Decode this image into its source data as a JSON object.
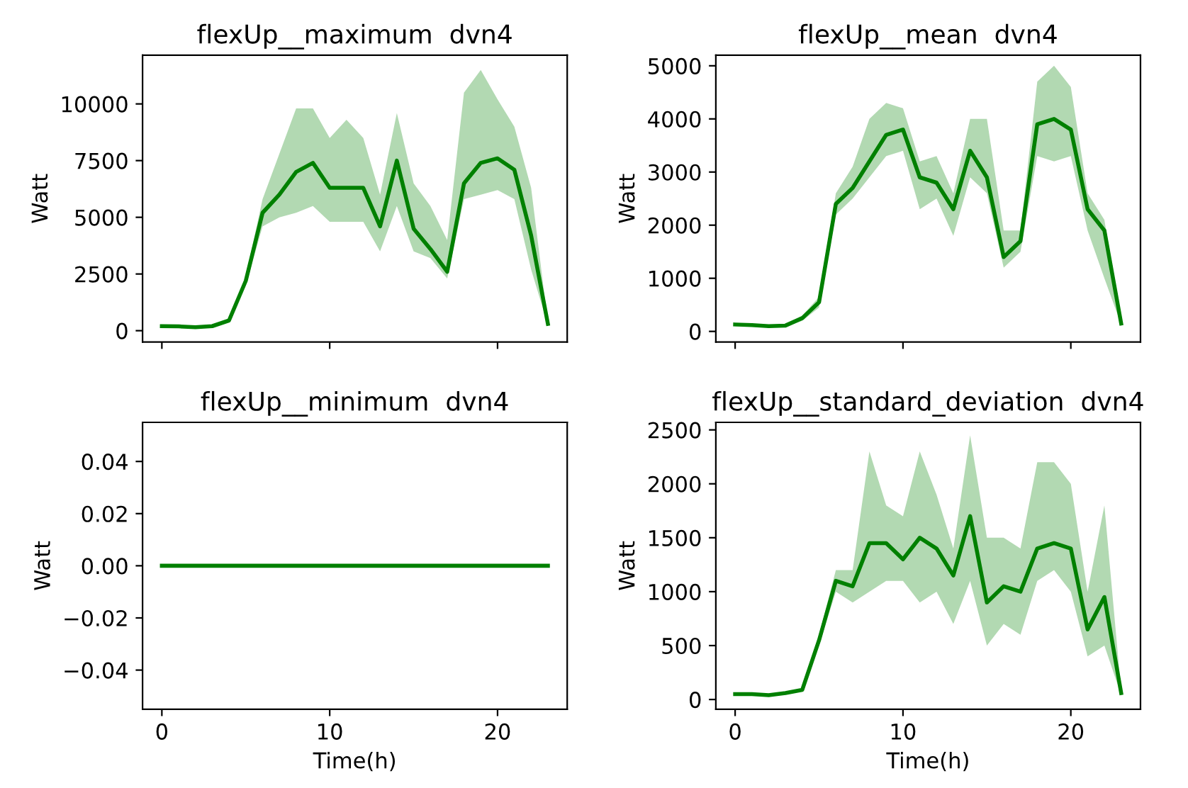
{
  "chart_data": [
    {
      "type": "line",
      "title": "flexUp__maximum  dvn4",
      "ylabel": "Watt",
      "x": [
        0,
        1,
        2,
        3,
        4,
        5,
        6,
        7,
        8,
        9,
        10,
        11,
        12,
        13,
        14,
        15,
        16,
        17,
        18,
        19,
        20,
        21,
        22,
        23
      ],
      "xlim": [
        -1.15,
        24.15
      ],
      "xticks": [
        0,
        10,
        20
      ],
      "ylim": [
        -500,
        12150
      ],
      "yticks": [
        0,
        2500,
        5000,
        7500,
        10000
      ],
      "tick_labels": "y",
      "grid": false,
      "line_style": "solid",
      "series": [
        {
          "color": "#008000",
          "values": [
            200,
            190,
            150,
            200,
            450,
            2200,
            5200,
            6000,
            7000,
            7400,
            6300,
            6300,
            6300,
            4600,
            7500,
            4500,
            3600,
            2600,
            6500,
            7400,
            7600,
            7100,
            4200,
            300
          ],
          "lower": [
            150,
            150,
            120,
            150,
            400,
            2000,
            4600,
            5000,
            5200,
            5500,
            4800,
            4800,
            4800,
            3500,
            5500,
            3500,
            3200,
            2300,
            5800,
            6000,
            6200,
            5800,
            2700,
            250
          ],
          "upper": [
            250,
            230,
            180,
            250,
            500,
            2400,
            5800,
            7800,
            9800,
            9800,
            8500,
            9300,
            8500,
            6000,
            9600,
            6500,
            5500,
            4000,
            10500,
            11500,
            10200,
            9000,
            6300,
            350
          ]
        }
      ]
    },
    {
      "type": "line",
      "title": "flexUp__mean  dvn4",
      "ylabel": "Watt",
      "x": [
        0,
        1,
        2,
        3,
        4,
        5,
        6,
        7,
        8,
        9,
        10,
        11,
        12,
        13,
        14,
        15,
        16,
        17,
        18,
        19,
        20,
        21,
        22,
        23
      ],
      "xlim": [
        -1.15,
        24.15
      ],
      "xticks": [
        0,
        10,
        20
      ],
      "ylim": [
        -200,
        5200
      ],
      "yticks": [
        0,
        1000,
        2000,
        3000,
        4000,
        5000
      ],
      "tick_labels": "y",
      "grid": false,
      "line_style": "solid",
      "series": [
        {
          "color": "#008000",
          "values": [
            130,
            120,
            100,
            110,
            250,
            550,
            2400,
            2700,
            3200,
            3700,
            3800,
            2900,
            2800,
            2300,
            3400,
            2900,
            1400,
            1700,
            3900,
            4000,
            3800,
            2300,
            1900,
            150
          ],
          "lower": [
            100,
            100,
            90,
            90,
            200,
            450,
            2200,
            2500,
            2900,
            3300,
            3400,
            2300,
            2500,
            1800,
            2900,
            2600,
            1200,
            1500,
            3300,
            3200,
            3300,
            1900,
            1000,
            130
          ],
          "upper": [
            160,
            150,
            120,
            130,
            300,
            650,
            2600,
            3100,
            4000,
            4300,
            4200,
            3200,
            3300,
            2600,
            4000,
            4000,
            1900,
            1900,
            4700,
            5000,
            4600,
            2600,
            2100,
            170
          ]
        }
      ]
    },
    {
      "type": "line",
      "title": "flexUp__minimum  dvn4",
      "ylabel": "Watt",
      "xlabel": "Time(h)",
      "x": [
        0,
        1,
        2,
        3,
        4,
        5,
        6,
        7,
        8,
        9,
        10,
        11,
        12,
        13,
        14,
        15,
        16,
        17,
        18,
        19,
        20,
        21,
        22,
        23
      ],
      "xlim": [
        -1.15,
        24.15
      ],
      "xticks": [
        0,
        10,
        20
      ],
      "ylim": [
        -0.055,
        0.055
      ],
      "yticks": [
        {
          "value": -0.04,
          "label": "−0.04"
        },
        {
          "value": -0.02,
          "label": "−0.02"
        },
        {
          "value": 0,
          "label": "0.00"
        },
        {
          "value": 0.02,
          "label": "0.02"
        },
        {
          "value": 0.04,
          "label": "0.04"
        }
      ],
      "grid": false,
      "line_style": "solid",
      "series": [
        {
          "color": "#008000",
          "values": [
            0,
            0,
            0,
            0,
            0,
            0,
            0,
            0,
            0,
            0,
            0,
            0,
            0,
            0,
            0,
            0,
            0,
            0,
            0,
            0,
            0,
            0,
            0,
            0
          ]
        }
      ]
    },
    {
      "type": "line",
      "title": "flexUp__standard_deviation  dvn4",
      "ylabel": "Watt",
      "xlabel": "Time(h)",
      "x": [
        0,
        1,
        2,
        3,
        4,
        5,
        6,
        7,
        8,
        9,
        10,
        11,
        12,
        13,
        14,
        15,
        16,
        17,
        18,
        19,
        20,
        21,
        22,
        23
      ],
      "xlim": [
        -1.15,
        24.15
      ],
      "xticks": [
        0,
        10,
        20
      ],
      "ylim": [
        -90,
        2570
      ],
      "yticks": [
        0,
        500,
        1000,
        1500,
        2000,
        2500
      ],
      "grid": false,
      "line_style": "solid",
      "series": [
        {
          "color": "#008000",
          "values": [
            50,
            50,
            40,
            60,
            90,
            550,
            1100,
            1050,
            1450,
            1450,
            1300,
            1500,
            1400,
            1150,
            1700,
            900,
            1050,
            1000,
            1400,
            1450,
            1400,
            650,
            950,
            60
          ],
          "lower": [
            40,
            40,
            30,
            50,
            80,
            500,
            1000,
            900,
            1000,
            1100,
            1100,
            900,
            1000,
            700,
            1100,
            500,
            700,
            600,
            1100,
            1200,
            1000,
            400,
            500,
            40
          ],
          "upper": [
            60,
            60,
            50,
            70,
            100,
            600,
            1200,
            1200,
            2300,
            1800,
            1700,
            2300,
            1900,
            1400,
            2450,
            1500,
            1500,
            1400,
            2200,
            2200,
            2000,
            1000,
            1800,
            80
          ]
        }
      ]
    }
  ]
}
